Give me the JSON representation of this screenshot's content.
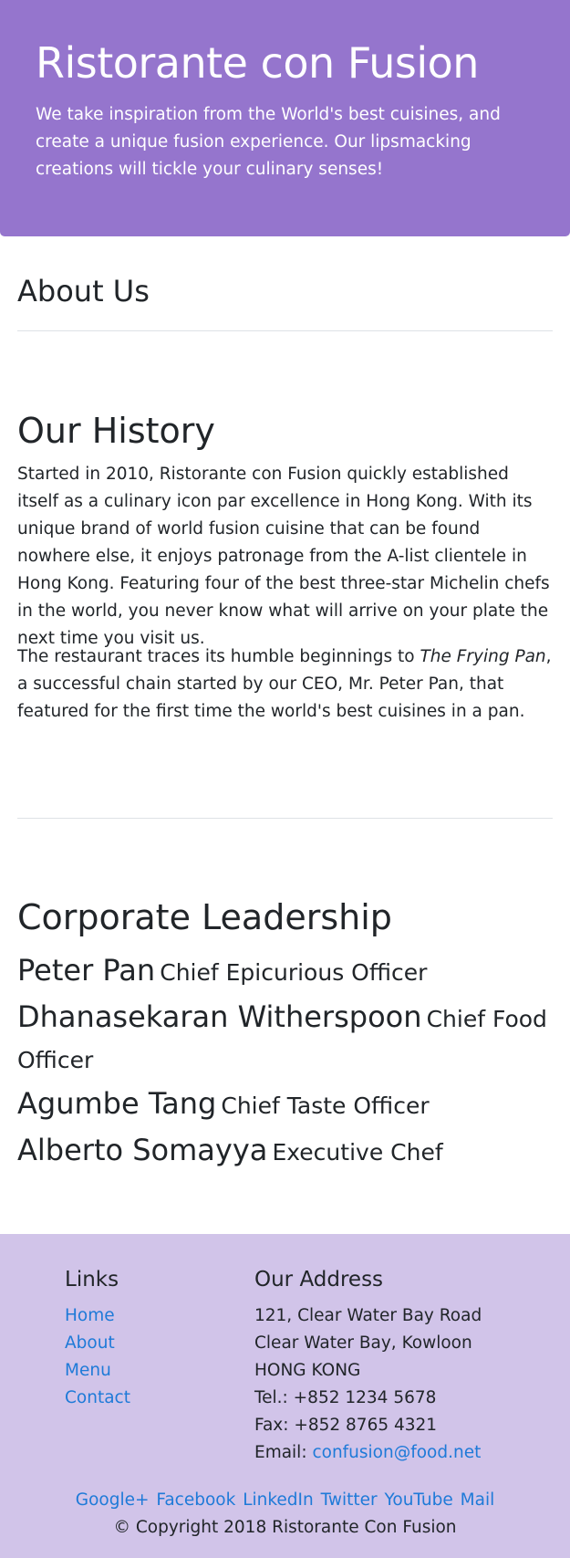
{
  "jumbotron": {
    "title": "Ristorante con Fusion",
    "tagline": "We take inspiration from the World's best cuisines, and create a unique fusion experience. Our lipsmacking creations will tickle your culinary senses!"
  },
  "about": {
    "heading": "About Us"
  },
  "history": {
    "heading": "Our History",
    "para1": "Started in 2010, Ristorante con Fusion quickly established itself as a culinary icon par excellence in Hong Kong. With its unique brand of world fusion cuisine that can be found nowhere else, it enjoys patronage from the A-list clientele in Hong Kong. Featuring four of the best three-star Michelin chefs in the world, you never know what will arrive on your plate the next time you visit us.",
    "para2_before": "The restaurant traces its humble beginnings to ",
    "para2_italic": "The Frying Pan",
    "para2_after": ", a successful chain started by our CEO, Mr. Peter Pan, that featured for the first time the world's best cuisines in a pan."
  },
  "leadership": {
    "heading": "Corporate Leadership",
    "leaders": [
      {
        "name": "Peter Pan",
        "role": "Chief Epicurious Officer"
      },
      {
        "name": "Dhanasekaran Witherspoon",
        "role": "Chief Food Officer"
      },
      {
        "name": "Agumbe Tang",
        "role": "Chief Taste Officer"
      },
      {
        "name": "Alberto Somayya",
        "role": "Executive Chef"
      }
    ]
  },
  "footer": {
    "links_heading": "Links",
    "links": [
      "Home",
      "About",
      "Menu",
      "Contact"
    ],
    "address_heading": "Our Address",
    "address_lines": [
      "121, Clear Water Bay Road",
      "Clear Water Bay, Kowloon",
      "HONG KONG",
      "Tel.: +852 1234 5678",
      "Fax: +852 8765 4321"
    ],
    "email_label": "Email: ",
    "email": "confusion@food.net",
    "social": [
      "Google+",
      "Facebook",
      "LinkedIn",
      "Twitter",
      "YouTube",
      "Mail"
    ],
    "copyright": "© Copyright 2018 Ristorante Con Fusion"
  },
  "colors": {
    "jumbotron_bg": "#9575cd",
    "footer_bg": "#d1c4e9",
    "link": "#1e7ad8"
  }
}
